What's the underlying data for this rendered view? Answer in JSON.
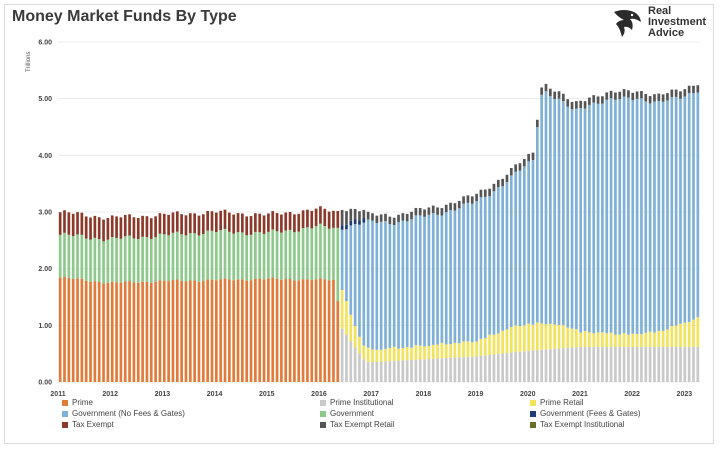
{
  "title": "Money Market Funds By Type",
  "brand": {
    "line1": "Real",
    "line2": "Investment",
    "line3": "Advice",
    "icon": "eagle-logo-icon"
  },
  "chart_data": {
    "type": "bar",
    "stacked": true,
    "ylabel": "Trillions",
    "ylim": [
      0,
      6
    ],
    "yticks": [
      "0.00",
      "1.00",
      "2.00",
      "3.00",
      "4.00",
      "5.00",
      "6.00"
    ],
    "xlim": [
      2011,
      2023.3
    ],
    "xticks": [
      "2011",
      "2012",
      "2013",
      "2014",
      "2015",
      "2016",
      "2017",
      "2018",
      "2019",
      "2020",
      "2021",
      "2022",
      "2023"
    ],
    "grid": true,
    "legend_position": "bottom",
    "series": [
      {
        "name": "Prime",
        "color": "#e07b39"
      },
      {
        "name": "Prime Institutional",
        "color": "#c9c9c9"
      },
      {
        "name": "Prime Retail",
        "color": "#f2e25c"
      },
      {
        "name": "Government (No Fees & Gates)",
        "color": "#7fb0d8"
      },
      {
        "name": "Government",
        "color": "#8cc98a"
      },
      {
        "name": "Government (Fees & Gates)",
        "color": "#1f3b73"
      },
      {
        "name": "Tax Exempt",
        "color": "#8b3a2a"
      },
      {
        "name": "Tax Exempt Retail",
        "color": "#555555"
      },
      {
        "name": "Tax Exempt Institutional",
        "color": "#6b6b2a"
      }
    ],
    "anchors": {
      "total": [
        [
          2011,
          3.0
        ],
        [
          2012,
          2.9
        ],
        [
          2013,
          2.95
        ],
        [
          2014,
          3.0
        ],
        [
          2015,
          2.95
        ],
        [
          2016,
          3.05
        ],
        [
          2016.4,
          3.0
        ],
        [
          2016.8,
          2.95
        ],
        [
          2017.5,
          2.95
        ],
        [
          2018,
          3.05
        ],
        [
          2018.5,
          3.15
        ],
        [
          2019,
          3.3
        ],
        [
          2019.5,
          3.6
        ],
        [
          2019.9,
          3.9
        ],
        [
          2020.1,
          4.05
        ],
        [
          2020.2,
          4.8
        ],
        [
          2020.28,
          5.3
        ],
        [
          2020.6,
          5.1
        ],
        [
          2020.9,
          4.9
        ],
        [
          2021.2,
          5.05
        ],
        [
          2021.6,
          5.1
        ],
        [
          2022.1,
          5.15
        ],
        [
          2022.5,
          5.05
        ],
        [
          2022.9,
          5.15
        ],
        [
          2023.3,
          5.3
        ]
      ],
      "prime": [
        [
          2011,
          1.85
        ],
        [
          2012,
          1.75
        ],
        [
          2013,
          1.78
        ],
        [
          2014,
          1.8
        ],
        [
          2015,
          1.82
        ],
        [
          2016.35,
          1.8
        ],
        [
          2016.4,
          0
        ]
      ],
      "tax_exempt": [
        [
          2011,
          0.4
        ],
        [
          2016.35,
          0.3
        ],
        [
          2016.8,
          0.15
        ],
        [
          2017,
          0.13
        ],
        [
          2023.3,
          0.13
        ]
      ],
      "prime_inst": [
        [
          2011,
          0
        ],
        [
          2016.35,
          0
        ],
        [
          2016.4,
          1.0
        ],
        [
          2016.7,
          0.6
        ],
        [
          2016.9,
          0.35
        ],
        [
          2017,
          0.35
        ],
        [
          2019,
          0.45
        ],
        [
          2020,
          0.55
        ],
        [
          2021,
          0.62
        ],
        [
          2022,
          0.62
        ],
        [
          2023.3,
          0.62
        ]
      ],
      "prime_retail": [
        [
          2011,
          0
        ],
        [
          2016.35,
          0
        ],
        [
          2016.4,
          0.7
        ],
        [
          2016.8,
          0.25
        ],
        [
          2017,
          0.2
        ],
        [
          2018,
          0.22
        ],
        [
          2019,
          0.25
        ],
        [
          2019.8,
          0.45
        ],
        [
          2020.3,
          0.45
        ],
        [
          2020.8,
          0.35
        ],
        [
          2021,
          0.25
        ],
        [
          2022,
          0.2
        ],
        [
          2022.5,
          0.25
        ],
        [
          2023.3,
          0.5
        ]
      ]
    }
  },
  "legend": [
    "Prime",
    "Prime Institutional",
    "Prime Retail",
    "Government (No Fees & Gates)",
    "Government",
    "Government (Fees & Gates)",
    "Tax Exempt",
    "Tax Exempt Retail",
    "Tax Exempt Institutional"
  ]
}
